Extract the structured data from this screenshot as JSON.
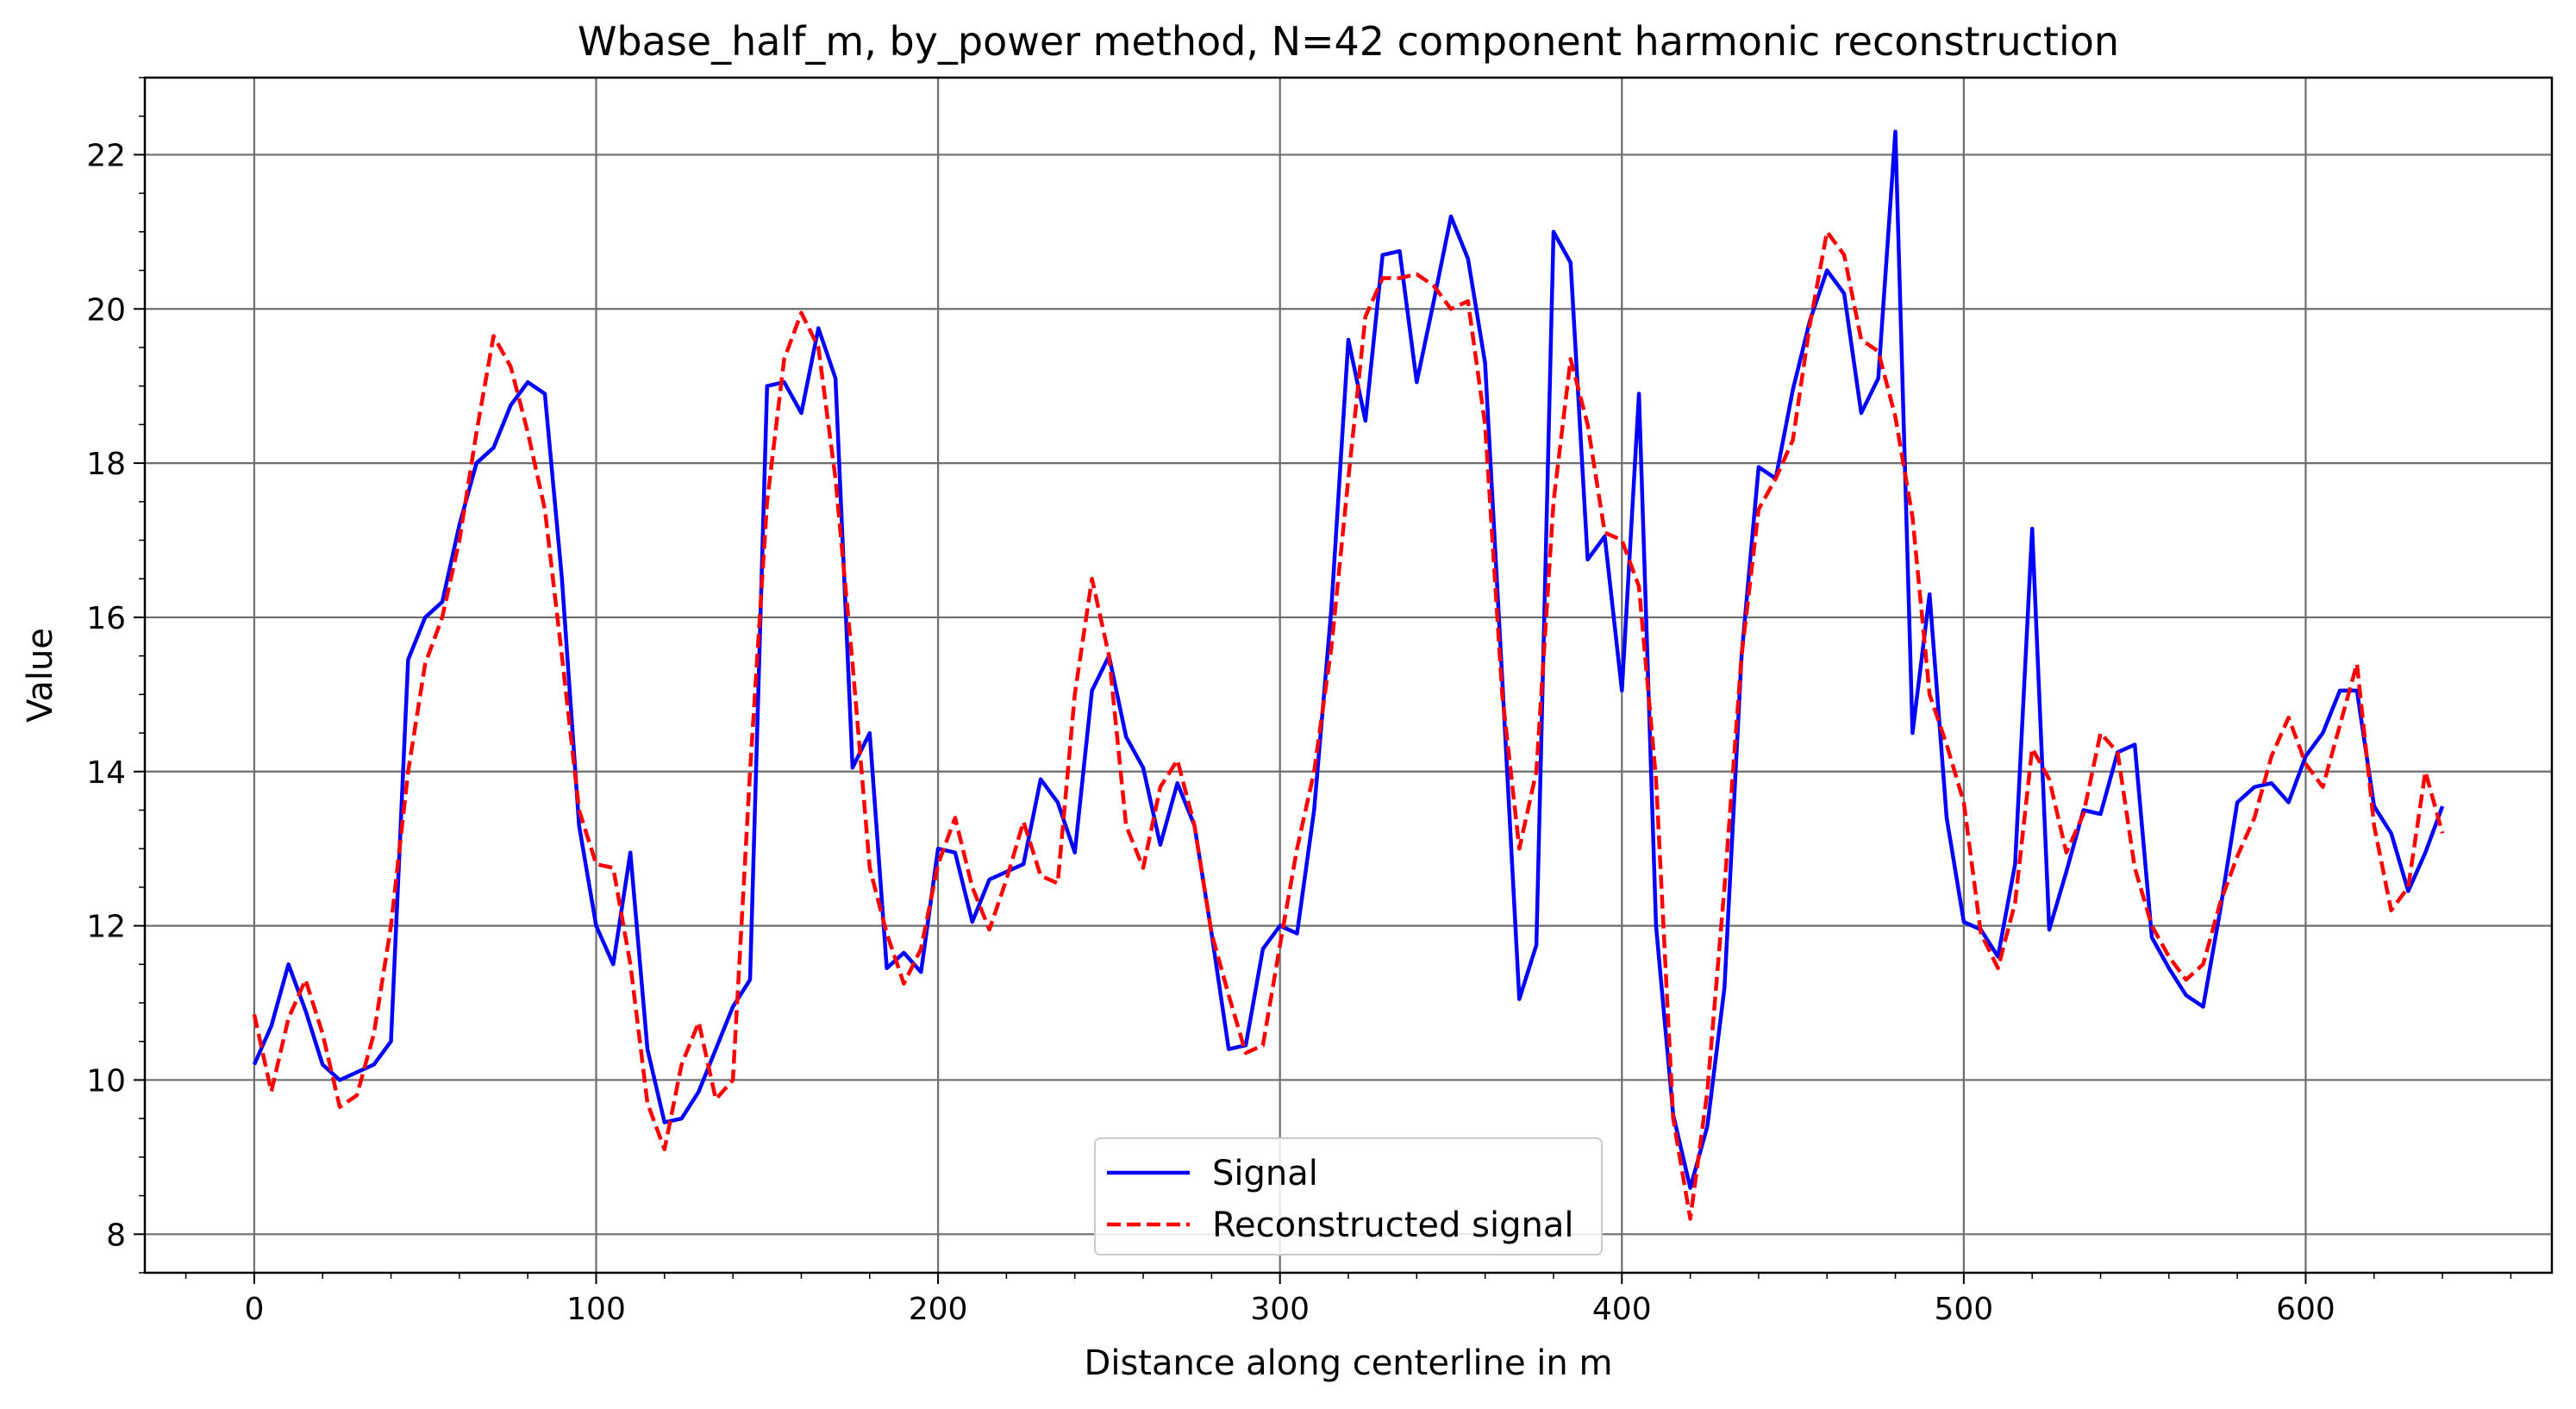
{
  "chart_data": {
    "type": "line",
    "title": "Wbase_half_m, by_power method, N=42 component harmonic reconstruction",
    "xlabel": "Distance along centerline in m",
    "ylabel": "Value",
    "xlim": [
      -32,
      672
    ],
    "ylim": [
      7.5,
      23.0
    ],
    "xticks": [
      0,
      100,
      200,
      300,
      400,
      500,
      600
    ],
    "yticks": [
      8,
      10,
      12,
      14,
      16,
      18,
      20,
      22
    ],
    "xticklabels": [
      "0",
      "100",
      "200",
      "300",
      "400",
      "500",
      "600"
    ],
    "yticklabels": [
      "8",
      "10",
      "12",
      "14",
      "16",
      "18",
      "20",
      "22"
    ],
    "grid": true,
    "legend_position": "bottom-center",
    "x": [
      0,
      5,
      10,
      15,
      20,
      25,
      30,
      35,
      40,
      45,
      50,
      55,
      60,
      65,
      70,
      75,
      80,
      85,
      90,
      95,
      100,
      105,
      110,
      115,
      120,
      125,
      130,
      135,
      140,
      145,
      150,
      155,
      160,
      165,
      170,
      175,
      180,
      185,
      190,
      195,
      200,
      205,
      210,
      215,
      220,
      225,
      230,
      235,
      240,
      245,
      250,
      255,
      260,
      265,
      270,
      275,
      280,
      285,
      290,
      295,
      300,
      305,
      310,
      315,
      320,
      325,
      330,
      335,
      340,
      345,
      350,
      355,
      360,
      365,
      370,
      375,
      380,
      385,
      390,
      395,
      400,
      405,
      410,
      415,
      420,
      425,
      430,
      435,
      440,
      445,
      450,
      455,
      460,
      465,
      470,
      475,
      480,
      485,
      490,
      495,
      500,
      505,
      510,
      515,
      520,
      525,
      530,
      535,
      540,
      545,
      550,
      555,
      560,
      565,
      570,
      575,
      580,
      585,
      590,
      595,
      600,
      605,
      610,
      615,
      620,
      625,
      630,
      635,
      640
    ],
    "series": [
      {
        "name": "Signal",
        "color": "#0000ff",
        "style": "solid",
        "values": [
          10.2,
          10.7,
          11.5,
          10.9,
          10.2,
          10.0,
          10.1,
          10.2,
          10.5,
          15.45,
          16.0,
          16.2,
          17.2,
          18.0,
          18.2,
          18.75,
          19.05,
          18.9,
          16.5,
          13.3,
          12.0,
          11.5,
          12.95,
          10.4,
          9.45,
          9.5,
          9.85,
          10.4,
          10.95,
          11.3,
          19.0,
          19.05,
          18.65,
          19.75,
          19.1,
          14.05,
          14.5,
          11.45,
          11.65,
          11.4,
          13.0,
          12.95,
          12.05,
          12.6,
          12.7,
          12.8,
          13.9,
          13.6,
          12.95,
          15.05,
          15.5,
          14.45,
          14.05,
          13.05,
          13.85,
          13.3,
          11.9,
          10.4,
          10.45,
          11.7,
          12.0,
          11.9,
          13.5,
          16.1,
          19.6,
          18.55,
          20.7,
          20.75,
          19.05,
          20.1,
          21.2,
          20.65,
          19.3,
          15.2,
          11.05,
          11.75,
          21.0,
          20.6,
          16.75,
          17.05,
          15.05,
          18.9,
          12.0,
          9.55,
          8.6,
          9.4,
          11.2,
          15.5,
          17.95,
          17.8,
          18.95,
          19.85,
          20.5,
          20.2,
          18.65,
          19.1,
          22.3,
          14.5,
          16.3,
          13.4,
          12.05,
          11.95,
          11.6,
          12.8,
          17.15,
          11.95,
          12.7,
          13.5,
          13.45,
          14.25,
          14.35,
          11.85,
          11.45,
          11.1,
          10.95,
          12.2,
          13.6,
          13.8,
          13.85,
          13.6,
          14.2,
          14.5,
          15.05,
          15.05,
          13.55,
          13.2,
          12.45,
          12.95,
          13.55
        ]
      },
      {
        "name": "Reconstructed signal",
        "color": "#ff0000",
        "style": "dashed",
        "values": [
          10.85,
          9.85,
          10.8,
          11.3,
          10.6,
          9.65,
          9.8,
          10.6,
          12.0,
          14.0,
          15.4,
          16.0,
          17.0,
          18.4,
          19.65,
          19.25,
          18.4,
          17.4,
          15.5,
          13.5,
          12.8,
          12.75,
          11.5,
          9.7,
          9.1,
          10.2,
          10.75,
          9.75,
          10.0,
          14.0,
          17.5,
          19.35,
          19.95,
          19.5,
          17.8,
          15.4,
          12.75,
          11.9,
          11.25,
          11.7,
          12.8,
          13.4,
          12.5,
          11.95,
          12.6,
          13.35,
          12.65,
          12.55,
          15.0,
          16.5,
          15.5,
          13.3,
          12.75,
          13.8,
          14.15,
          13.3,
          11.9,
          11.1,
          10.35,
          10.45,
          11.75,
          13.0,
          14.0,
          15.6,
          17.8,
          19.9,
          20.4,
          20.4,
          20.45,
          20.3,
          20.0,
          20.1,
          18.5,
          15.0,
          13.0,
          14.0,
          17.5,
          19.35,
          18.5,
          17.1,
          17.0,
          16.4,
          13.9,
          9.5,
          8.2,
          9.85,
          12.5,
          15.5,
          17.4,
          17.8,
          18.3,
          19.8,
          21.0,
          20.7,
          19.6,
          19.45,
          18.6,
          17.3,
          15.0,
          14.35,
          13.6,
          11.9,
          11.45,
          12.3,
          14.3,
          13.9,
          12.95,
          13.45,
          14.5,
          14.25,
          12.75,
          12.0,
          11.6,
          11.3,
          11.5,
          12.3,
          12.9,
          13.4,
          14.2,
          14.7,
          14.1,
          13.8,
          14.6,
          15.4,
          13.3,
          12.2,
          12.5,
          14.0,
          13.2
        ]
      }
    ]
  }
}
